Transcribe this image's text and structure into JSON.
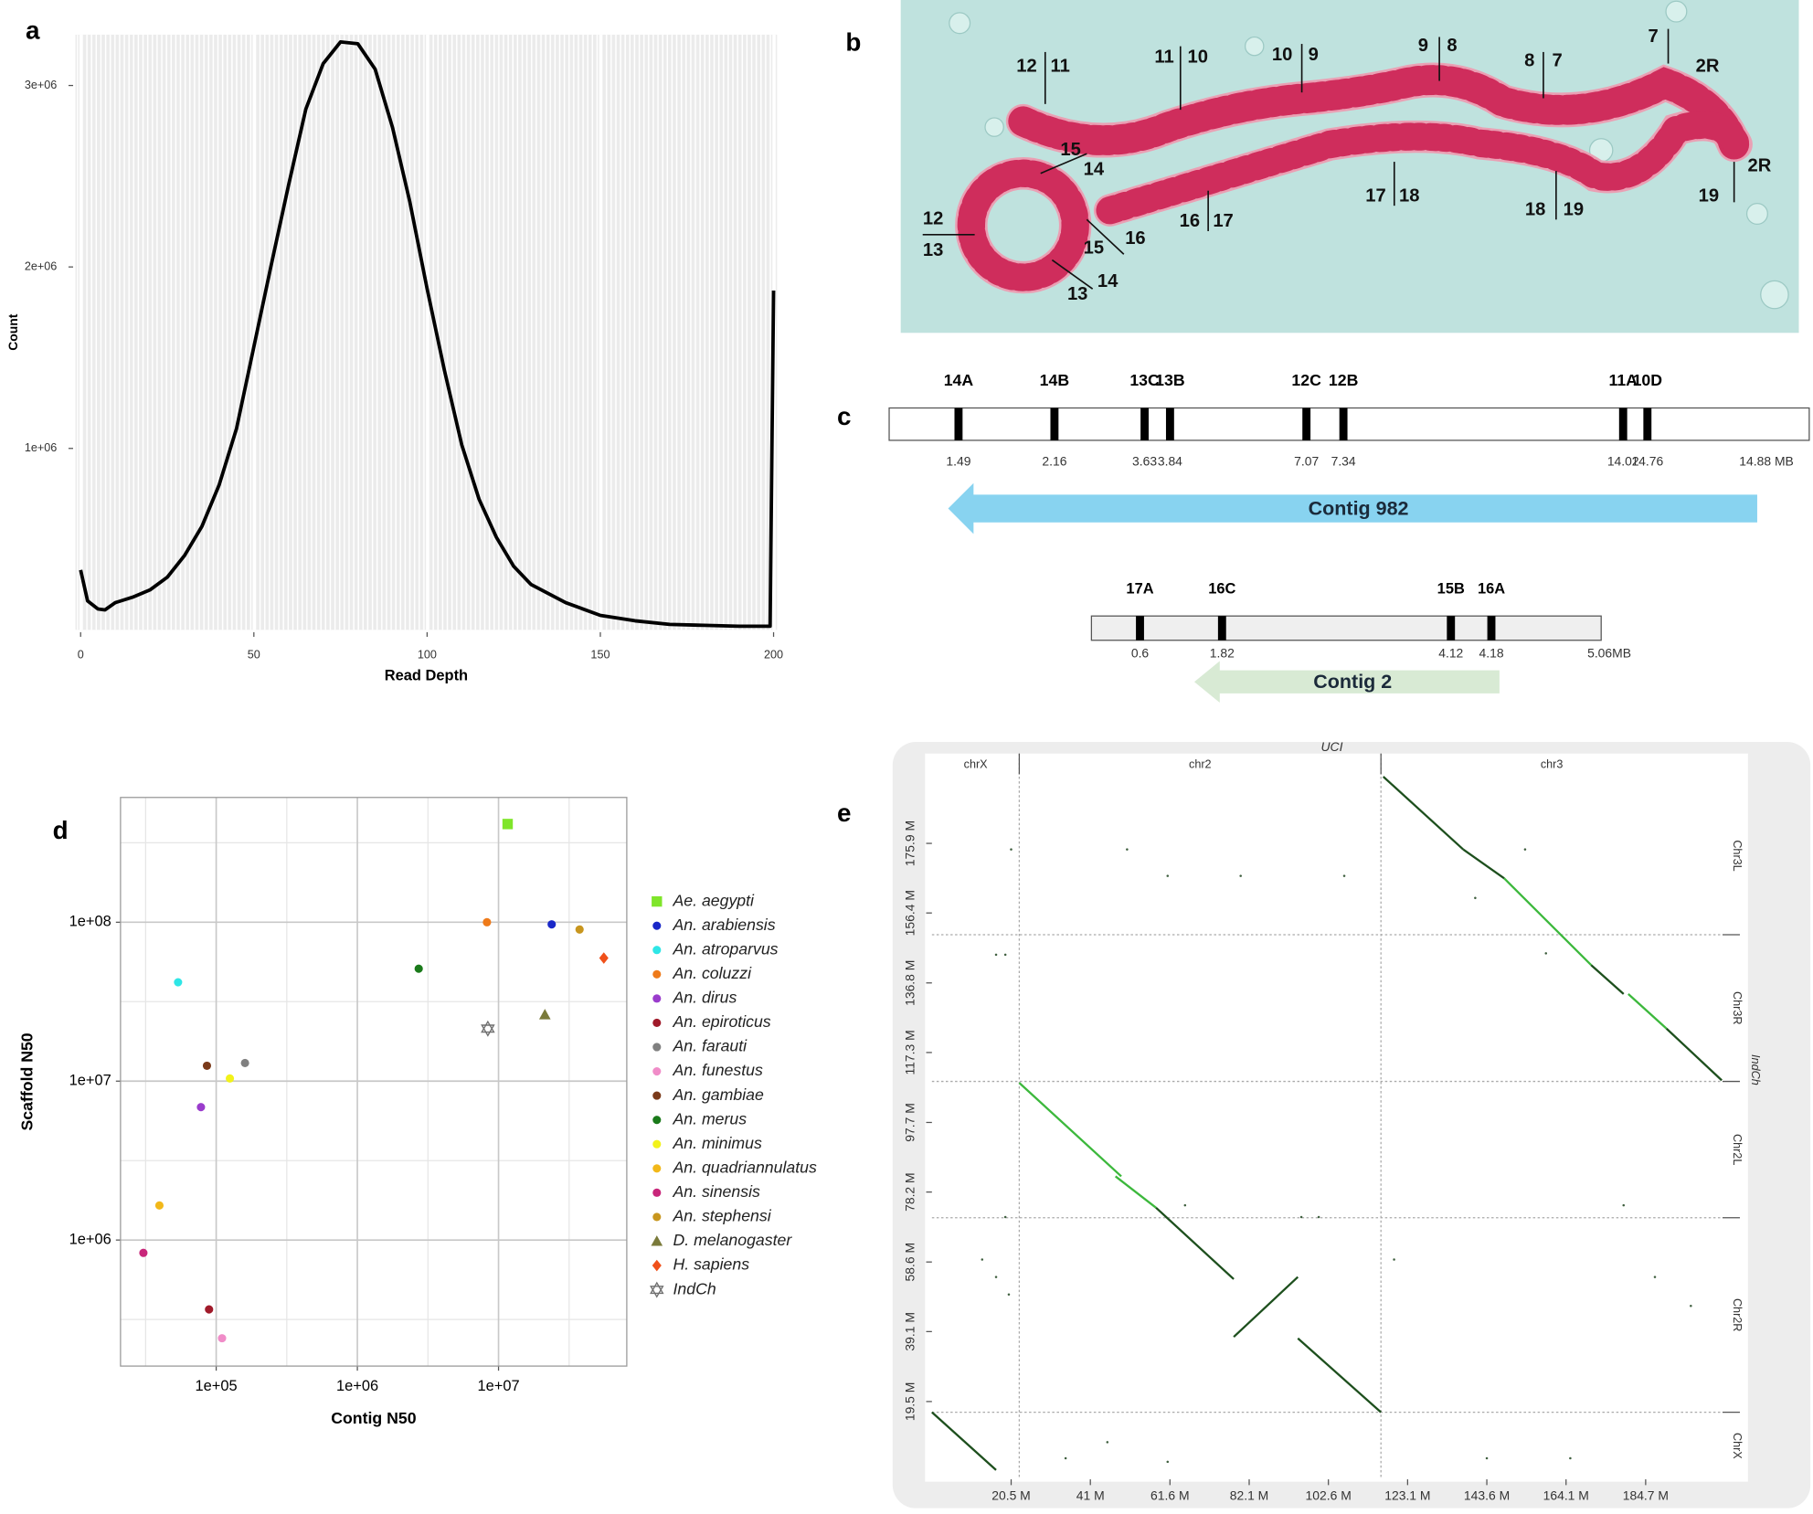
{
  "chart_data": [
    {
      "type": "line",
      "panel_label": "a",
      "xlabel": "Read Depth",
      "ylabel": "Count",
      "color": "#000000",
      "grid": true,
      "x": [
        0,
        2,
        5,
        7,
        10,
        15,
        20,
        25,
        30,
        35,
        40,
        45,
        50,
        55,
        60,
        65,
        70,
        75,
        80,
        85,
        90,
        95,
        100,
        105,
        110,
        115,
        120,
        125,
        130,
        140,
        150,
        160,
        170,
        180,
        190,
        199,
        200
      ],
      "values": [
        330000,
        160000,
        115000,
        110000,
        150000,
        180000,
        220000,
        290000,
        410000,
        570000,
        800000,
        1110000,
        1560000,
        2010000,
        2450000,
        2870000,
        3120000,
        3240000,
        3230000,
        3090000,
        2770000,
        2360000,
        1880000,
        1430000,
        1020000,
        720000,
        510000,
        350000,
        250000,
        150000,
        80000,
        50000,
        30000,
        25000,
        20000,
        20000,
        1870000
      ],
      "xlim": [
        -1.5,
        201
      ],
      "ylim": [
        0,
        3280000
      ],
      "xticks": [
        0,
        50,
        100,
        150,
        200
      ],
      "yticks": [
        {
          "value": 1000000,
          "label": "1e+06"
        },
        {
          "value": 2000000,
          "label": "2e+06"
        },
        {
          "value": 3000000,
          "label": "3e+06"
        }
      ]
    },
    {
      "type": "scatter",
      "panel_label": "d",
      "xlabel": "Contig N50",
      "ylabel": "Scaffold N50",
      "xscale": "log",
      "yscale": "log",
      "grid": true,
      "minor_grid": true,
      "legend": "right",
      "xlim": [
        21000,
        81000000
      ],
      "ylim": [
        161000,
        610000000
      ],
      "xticks": [
        {
          "value": 100000,
          "label": "1e+05"
        },
        {
          "value": 1000000,
          "label": "1e+06"
        },
        {
          "value": 10000000,
          "label": "1e+07"
        }
      ],
      "yticks": [
        {
          "value": 1000000,
          "label": "1e+06"
        },
        {
          "value": 10000000,
          "label": "1e+07"
        },
        {
          "value": 100000000,
          "label": "1e+08"
        }
      ],
      "series": [
        {
          "name": "Ae. aegypti",
          "color": "#7fe52a",
          "marker": "square",
          "x": [
            11600000
          ],
          "values": [
            415000000
          ]
        },
        {
          "name": "An. arabiensis",
          "color": "#1a28c8",
          "marker": "circle",
          "x": [
            23800000
          ],
          "values": [
            97000000
          ]
        },
        {
          "name": "An. atroparvus",
          "color": "#2ee6e6",
          "marker": "circle",
          "x": [
            53700
          ],
          "values": [
            41900000
          ]
        },
        {
          "name": "An. coluzzi",
          "color": "#ee7a1a",
          "marker": "circle",
          "x": [
            8280000
          ],
          "values": [
            100000000
          ]
        },
        {
          "name": "An. dirus",
          "color": "#9a3ccc",
          "marker": "circle",
          "x": [
            78000
          ],
          "values": [
            6860000
          ]
        },
        {
          "name": "An. epiroticus",
          "color": "#a01a2a",
          "marker": "circle",
          "x": [
            89000
          ],
          "values": [
            366000
          ]
        },
        {
          "name": "An. farauti",
          "color": "#808080",
          "marker": "circle",
          "x": [
            160000
          ],
          "values": [
            13000000
          ]
        },
        {
          "name": "An. funestus",
          "color": "#f08cc8",
          "marker": "circle",
          "x": [
            110000
          ],
          "values": [
            241000
          ]
        },
        {
          "name": "An. gambiae",
          "color": "#7a3a1a",
          "marker": "circle",
          "x": [
            86000
          ],
          "values": [
            12500000
          ]
        },
        {
          "name": "An. merus",
          "color": "#1a7a1a",
          "marker": "circle",
          "x": [
            2720000
          ],
          "values": [
            51000000
          ]
        },
        {
          "name": "An. minimus",
          "color": "#f2f21a",
          "marker": "circle",
          "x": [
            125000
          ],
          "values": [
            10400000
          ]
        },
        {
          "name": "An. quadriannulatus",
          "color": "#f2b81a",
          "marker": "circle",
          "x": [
            39600
          ],
          "values": [
            1650000
          ]
        },
        {
          "name": "An. sinensis",
          "color": "#c8267a",
          "marker": "circle",
          "x": [
            30500
          ],
          "values": [
            830000
          ]
        },
        {
          "name": "An. stephensi",
          "color": "#c8961e",
          "marker": "circle",
          "x": [
            37500000
          ],
          "values": [
            90000000
          ]
        },
        {
          "name": "D. melanogaster",
          "color": "#7a7a3a",
          "marker": "triangle",
          "x": [
            21300000
          ],
          "values": [
            26200000
          ]
        },
        {
          "name": "H. sapiens",
          "color": "#f0501a",
          "marker": "diamond",
          "x": [
            55700000
          ],
          "values": [
            59500000
          ]
        },
        {
          "name": "IndCh",
          "color": "#707070",
          "marker": "star",
          "x": [
            8400000
          ],
          "values": [
            21400000
          ]
        }
      ]
    },
    {
      "type": "dotplot",
      "panel_label": "e",
      "title": "UCI",
      "row_axis_label": "IndCh",
      "column_labels": [
        "chrX",
        "chr2",
        "chr3"
      ],
      "row_labels": [
        "Chr3L",
        "Chr3R",
        "Chr2L",
        "Chr2R",
        "ChrX"
      ],
      "column_breaks": [
        22.6,
        116.2
      ],
      "row_breaks": [
        16.5,
        71.0,
        109.2,
        150.3
      ],
      "xlim": [
        0,
        204.6
      ],
      "ylim": [
        -2.3,
        194.6
      ],
      "xticks": [
        {
          "value": 20.5,
          "label": "20.5 M"
        },
        {
          "value": 41,
          "label": "41 M"
        },
        {
          "value": 61.6,
          "label": "61.6 M"
        },
        {
          "value": 82.1,
          "label": "82.1 M"
        },
        {
          "value": 102.6,
          "label": "102.6 M"
        },
        {
          "value": 123.1,
          "label": "123.1 M"
        },
        {
          "value": 143.6,
          "label": "143.6 M"
        },
        {
          "value": 164.1,
          "label": "164.1 M"
        },
        {
          "value": 184.7,
          "label": "184.7 M"
        }
      ],
      "yticks": [
        {
          "value": 19.5,
          "label": "19.5 M"
        },
        {
          "value": 39.1,
          "label": "39.1 M"
        },
        {
          "value": 58.6,
          "label": "58.6 M"
        },
        {
          "value": 78.2,
          "label": "78.2 M"
        },
        {
          "value": 97.7,
          "label": "97.7 M"
        },
        {
          "value": 117.3,
          "label": "117.3 M"
        },
        {
          "value": 136.8,
          "label": "136.8 M"
        },
        {
          "value": 156.4,
          "label": "156.4 M"
        },
        {
          "value": 175.9,
          "label": "175.9 M"
        }
      ],
      "series": [
        {
          "color": "#1d4f1d",
          "x": [
            0,
            16.6
          ],
          "values": [
            16.5,
            0.3
          ]
        },
        {
          "color": "#3cb83c",
          "x": [
            22.6,
            49.0
          ],
          "values": [
            108.8,
            82.6
          ]
        },
        {
          "color": "#3cb83c",
          "x": [
            47.5,
            58.0
          ],
          "values": [
            82.6,
            73.8
          ]
        },
        {
          "color": "#1d4f1d",
          "x": [
            58.0,
            78.1
          ],
          "values": [
            73.8,
            53.8
          ]
        },
        {
          "color": "#1d4f1d",
          "x": [
            78.1,
            94.7
          ],
          "values": [
            37.6,
            54.4
          ]
        },
        {
          "color": "#1d4f1d",
          "x": [
            94.7,
            116.2
          ],
          "values": [
            37.2,
            16.5
          ]
        },
        {
          "color": "#1d4f1d",
          "x": [
            116.8,
            137.5
          ],
          "values": [
            194.6,
            174.2
          ]
        },
        {
          "color": "#1d4f1d",
          "x": [
            137.5,
            148.1
          ],
          "values": [
            174.2,
            166.1
          ]
        },
        {
          "color": "#3cb83c",
          "x": [
            148.1,
            170.6
          ],
          "values": [
            166.1,
            141.8
          ]
        },
        {
          "color": "#1d4f1d",
          "x": [
            170.6,
            179.0
          ],
          "values": [
            141.8,
            133.7
          ]
        },
        {
          "color": "#3cb83c",
          "x": [
            180.2,
            190.1
          ],
          "values": [
            133.7,
            124.0
          ]
        },
        {
          "color": "#1d4f1d",
          "x": [
            190.1,
            204.4
          ],
          "values": [
            124.0,
            109.5
          ]
        }
      ],
      "points": {
        "color": "#3f5f3f",
        "x": [
          20.5,
          50.5,
          61.0,
          79.9,
          106.7,
          16.6,
          19.0,
          140.6,
          153.5,
          158.9,
          13.0,
          16.6,
          19.9,
          19.0,
          65.5,
          95.6,
          100.1,
          119.6,
          179.0,
          187.1,
          196.4,
          45.4,
          61.0,
          34.6,
          143.6,
          165.2
        ],
        "values": [
          174.2,
          174.2,
          166.8,
          166.8,
          166.8,
          144.7,
          144.7,
          160.6,
          174.2,
          145.1,
          59.3,
          54.4,
          49.5,
          71.2,
          74.5,
          71.2,
          71.2,
          59.3,
          74.5,
          54.4,
          46.3,
          8.1,
          2.6,
          3.6,
          3.6,
          3.6
        ]
      }
    }
  ],
  "panel_b": {
    "label": "b",
    "band_labels": [
      "12",
      "11",
      "11",
      "10",
      "10",
      "9",
      "9",
      "8",
      "8",
      "7",
      "7",
      "2R",
      "15",
      "14",
      "12",
      "13",
      "16",
      "15",
      "14",
      "13",
      "16",
      "17",
      "17",
      "18",
      "18",
      "19",
      "19",
      "2R"
    ]
  },
  "panel_c": {
    "label": "c",
    "contigs": [
      {
        "name": "Contig 982",
        "end": "14.88 MB",
        "bands": [
          {
            "label": "14A",
            "position": "1.49"
          },
          {
            "label": "14B",
            "position": "2.16"
          },
          {
            "label": "13C",
            "position": "3.63"
          },
          {
            "label": "13B",
            "position": "3.84"
          },
          {
            "label": "12C",
            "position": "7.07"
          },
          {
            "label": "12B",
            "position": "7.34"
          },
          {
            "label": "11A",
            "position": "14.02"
          },
          {
            "label": "10D",
            "position": "14.76"
          }
        ]
      },
      {
        "name": "Contig 2",
        "end": "5.06MB",
        "bands": [
          {
            "label": "17A",
            "position": "0.6"
          },
          {
            "label": "16C",
            "position": "1.82"
          },
          {
            "label": "15B",
            "position": "4.12"
          },
          {
            "label": "16A",
            "position": "4.18"
          }
        ]
      }
    ]
  }
}
